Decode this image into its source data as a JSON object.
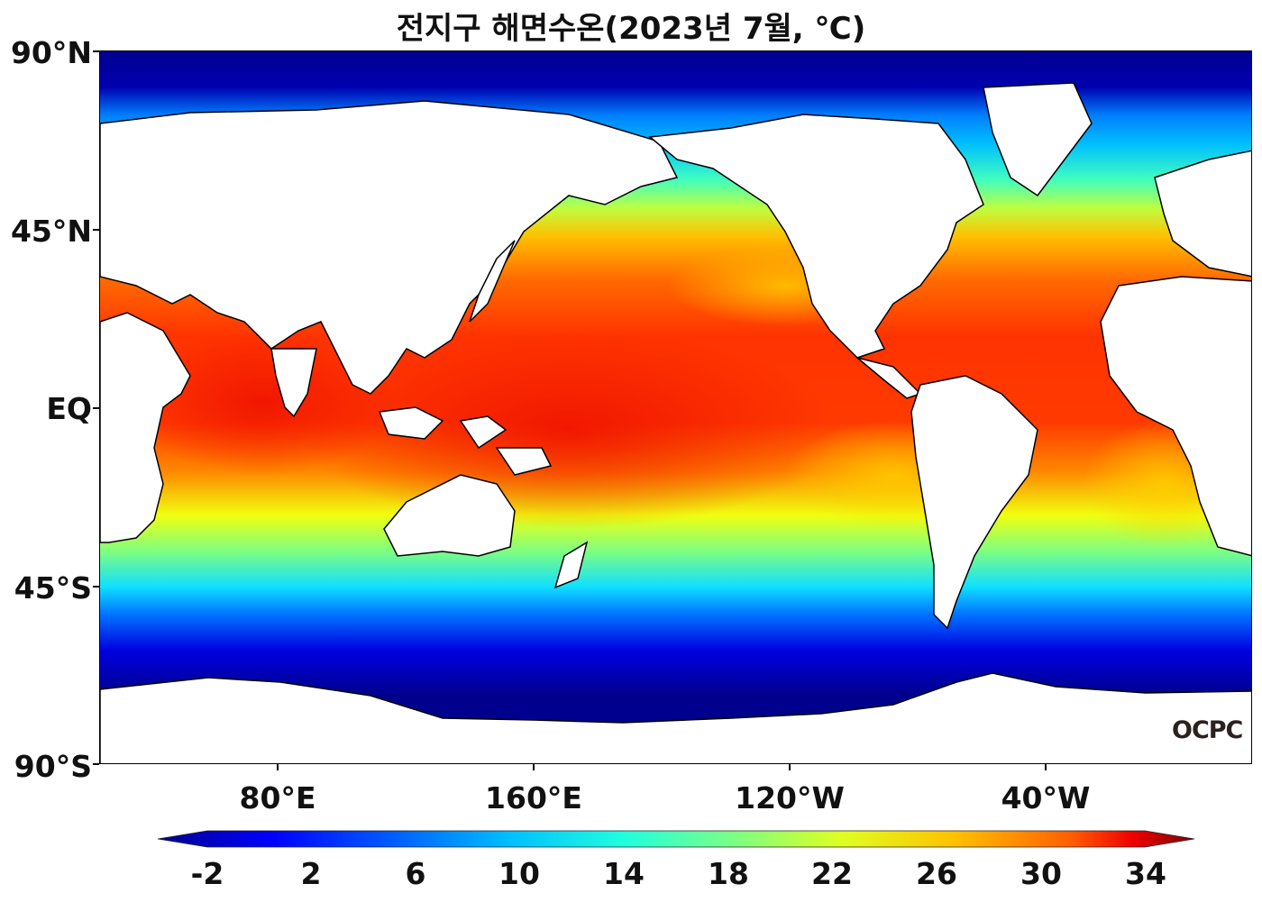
{
  "title": "전지구 해면수온(2023년 7월, ℃)",
  "logo": "OCPC",
  "map": {
    "lat_labels": [
      "90°N",
      "45°N",
      "EQ",
      "45°S",
      "90°S"
    ],
    "lon_labels": [
      "80°E",
      "160°E",
      "120°W",
      "40°W"
    ],
    "land_color": "#ffffff",
    "coastline_color": "#000000"
  },
  "colorbar": {
    "labels": [
      "-2",
      "2",
      "6",
      "10",
      "14",
      "18",
      "22",
      "26",
      "30",
      "34"
    ],
    "extend": "both",
    "colormap": "jet",
    "colors": [
      "#00008f",
      "#0000ff",
      "#0060ff",
      "#00c0ff",
      "#20ffdf",
      "#80ff80",
      "#dfff20",
      "#ffc000",
      "#ff6000",
      "#ef0000",
      "#800000"
    ]
  }
}
